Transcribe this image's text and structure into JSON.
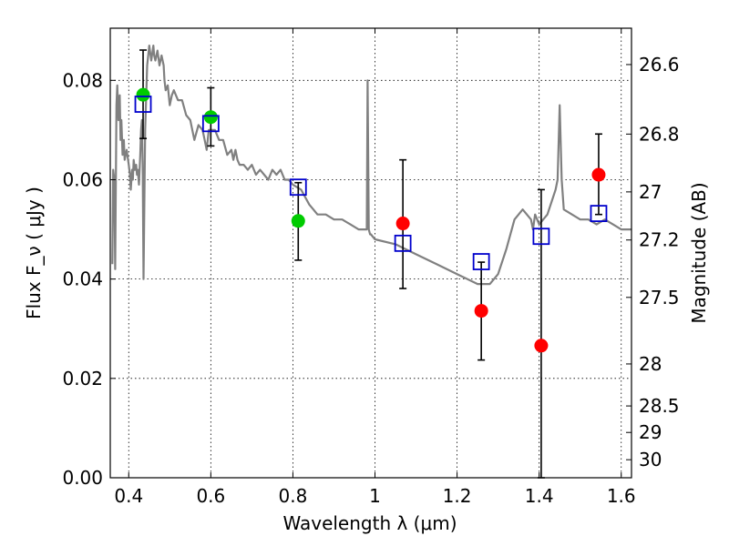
{
  "chart_data": {
    "type": "scatter",
    "xlabel": "Wavelength  λ (μm)",
    "ylabel": "Flux  F_ν  ( μJy )",
    "y2label": "Magnitude (AB)",
    "xlim": [
      0.355,
      1.625
    ],
    "ylim": [
      0.0,
      0.0905
    ],
    "grid": true,
    "x_ticks": [
      0.4,
      0.6,
      0.8,
      1.0,
      1.2,
      1.4,
      1.6
    ],
    "x_tick_labels": [
      "0.4",
      "0.6",
      "0.8",
      "1",
      "1.2",
      "1.4",
      "1.6"
    ],
    "y_ticks": [
      0.0,
      0.02,
      0.04,
      0.06,
      0.08
    ],
    "y_tick_labels": [
      "0.00",
      "0.02",
      "0.04",
      "0.06",
      "0.08"
    ],
    "y2_ticks": [
      26.6,
      26.8,
      27.0,
      27.2,
      27.5,
      28.0,
      28.5,
      29.0,
      30.0
    ],
    "y2_tick_labels": [
      "26.6",
      "26.8",
      "27",
      "27.2",
      "27.5",
      "28",
      "28.5",
      "29",
      "30"
    ],
    "series": [
      {
        "kind": "line",
        "color": "#808080",
        "x": [
          0.36,
          0.362,
          0.365,
          0.367,
          0.37,
          0.372,
          0.375,
          0.378,
          0.38,
          0.382,
          0.385,
          0.388,
          0.39,
          0.395,
          0.4,
          0.403,
          0.405,
          0.408,
          0.41,
          0.412,
          0.415,
          0.418,
          0.42,
          0.422,
          0.425,
          0.428,
          0.43,
          0.432,
          0.434,
          0.436,
          0.44,
          0.445,
          0.45,
          0.455,
          0.46,
          0.462,
          0.465,
          0.47,
          0.475,
          0.48,
          0.485,
          0.487,
          0.49,
          0.495,
          0.5,
          0.505,
          0.51,
          0.52,
          0.53,
          0.54,
          0.55,
          0.56,
          0.57,
          0.58,
          0.585,
          0.59,
          0.595,
          0.6,
          0.61,
          0.62,
          0.63,
          0.64,
          0.65,
          0.655,
          0.66,
          0.665,
          0.67,
          0.68,
          0.69,
          0.7,
          0.71,
          0.72,
          0.73,
          0.74,
          0.75,
          0.76,
          0.77,
          0.78,
          0.79,
          0.8,
          0.82,
          0.84,
          0.85,
          0.86,
          0.88,
          0.9,
          0.92,
          0.94,
          0.96,
          0.98,
          0.982,
          0.985,
          0.988,
          0.99,
          1.0,
          1.05,
          1.1,
          1.15,
          1.2,
          1.25,
          1.28,
          1.3,
          1.32,
          1.34,
          1.36,
          1.38,
          1.385,
          1.39,
          1.4,
          1.42,
          1.44,
          1.445,
          1.45,
          1.455,
          1.46,
          1.48,
          1.5,
          1.52,
          1.54,
          1.56,
          1.58,
          1.6,
          1.625
        ],
        "y": [
          0.043,
          0.062,
          0.06,
          0.042,
          0.075,
          0.079,
          0.072,
          0.077,
          0.068,
          0.072,
          0.065,
          0.068,
          0.064,
          0.066,
          0.063,
          0.061,
          0.058,
          0.062,
          0.06,
          0.064,
          0.062,
          0.063,
          0.061,
          0.062,
          0.059,
          0.065,
          0.07,
          0.072,
          0.063,
          0.04,
          0.07,
          0.083,
          0.087,
          0.084,
          0.087,
          0.085,
          0.084,
          0.086,
          0.083,
          0.085,
          0.083,
          0.08,
          0.078,
          0.079,
          0.075,
          0.077,
          0.078,
          0.076,
          0.076,
          0.073,
          0.072,
          0.068,
          0.071,
          0.07,
          0.068,
          0.066,
          0.07,
          0.07,
          0.07,
          0.068,
          0.068,
          0.065,
          0.066,
          0.064,
          0.066,
          0.064,
          0.063,
          0.063,
          0.062,
          0.063,
          0.061,
          0.062,
          0.061,
          0.06,
          0.062,
          0.061,
          0.062,
          0.06,
          0.06,
          0.059,
          0.058,
          0.055,
          0.054,
          0.053,
          0.053,
          0.052,
          0.052,
          0.051,
          0.05,
          0.05,
          0.08,
          0.05,
          0.049,
          0.049,
          0.048,
          0.047,
          0.045,
          0.043,
          0.041,
          0.039,
          0.039,
          0.041,
          0.046,
          0.052,
          0.054,
          0.052,
          0.05,
          0.053,
          0.051,
          0.053,
          0.058,
          0.06,
          0.075,
          0.06,
          0.054,
          0.053,
          0.052,
          0.052,
          0.051,
          0.052,
          0.051,
          0.05,
          0.05
        ]
      },
      {
        "kind": "errorbar",
        "color": "#000000",
        "points": [
          {
            "x": 0.435,
            "y": 0.0771,
            "lo": 0.0683,
            "hi": 0.0861
          },
          {
            "x": 0.6,
            "y": 0.0726,
            "lo": 0.0668,
            "hi": 0.0785
          },
          {
            "x": 0.813,
            "y": 0.0517,
            "lo": 0.0438,
            "hi": 0.0594
          },
          {
            "x": 1.068,
            "y": 0.0512,
            "lo": 0.0381,
            "hi": 0.064
          },
          {
            "x": 1.259,
            "y": 0.0336,
            "lo": 0.0237,
            "hi": 0.0434
          },
          {
            "x": 1.405,
            "y": 0.0266,
            "lo": 0.0,
            "hi": 0.058
          },
          {
            "x": 1.545,
            "y": 0.061,
            "lo": 0.053,
            "hi": 0.0692
          }
        ]
      },
      {
        "kind": "scatter",
        "marker": "circle",
        "color": "#00cc00",
        "x": [
          0.435,
          0.6,
          0.813
        ],
        "y": [
          0.0771,
          0.0726,
          0.0517
        ]
      },
      {
        "kind": "scatter",
        "marker": "circle",
        "color": "#ff0000",
        "x": [
          1.068,
          1.259,
          1.405,
          1.545
        ],
        "y": [
          0.0512,
          0.0336,
          0.0266,
          0.061
        ]
      },
      {
        "kind": "scatter",
        "marker": "square-open",
        "color": "#0000cc",
        "x": [
          0.435,
          0.6,
          0.813,
          1.068,
          1.259,
          1.405,
          1.545
        ],
        "y": [
          0.0752,
          0.0713,
          0.0585,
          0.0472,
          0.0435,
          0.0486,
          0.0532
        ]
      }
    ]
  }
}
